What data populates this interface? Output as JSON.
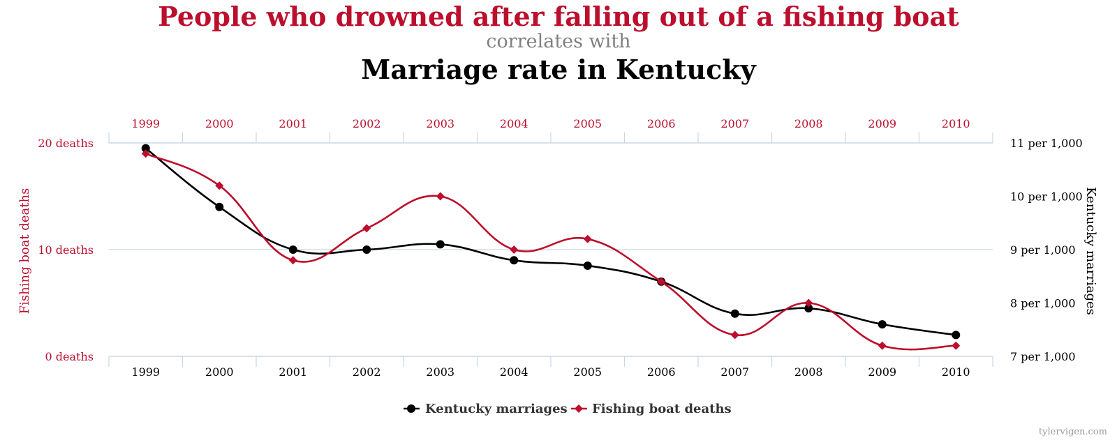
{
  "colors": {
    "red": "#bc0f2d",
    "black": "#000000",
    "gray": "#808080",
    "grid": "#c8d6e5",
    "legend_text": "#333333",
    "credit": "#999999"
  },
  "chart_data": {
    "type": "line",
    "title": "People who drowned after falling out of a fishing boat",
    "subtitle": "correlates with",
    "title2": "Marriage rate in Kentucky",
    "categories": [
      "1999",
      "2000",
      "2001",
      "2002",
      "2003",
      "2004",
      "2005",
      "2006",
      "2007",
      "2008",
      "2009",
      "2010"
    ],
    "series": [
      {
        "name": "Kentucky marriages",
        "axis": "right",
        "color": "#000000",
        "marker": "circle",
        "values": [
          10.9,
          9.8,
          9.0,
          9.0,
          9.1,
          8.8,
          8.7,
          8.4,
          7.8,
          7.9,
          7.6,
          7.4
        ]
      },
      {
        "name": "Fishing boat deaths",
        "axis": "left",
        "color": "#bc0f2d",
        "marker": "diamond",
        "values": [
          19,
          16,
          9,
          12,
          15,
          10,
          11,
          7,
          2,
          5,
          1,
          1
        ]
      }
    ],
    "left_axis": {
      "label": "Fishing boat deaths",
      "ylim": [
        0,
        20
      ],
      "ticks": [
        {
          "value": 20,
          "label": "20 deaths"
        },
        {
          "value": 10,
          "label": "10 deaths"
        },
        {
          "value": 0,
          "label": "0 deaths"
        }
      ]
    },
    "right_axis": {
      "label": "Kentucky marriages",
      "ylim": [
        7,
        11
      ],
      "ticks": [
        {
          "value": 11,
          "label": "11 per 1,000"
        },
        {
          "value": 10,
          "label": "10 per 1,000"
        },
        {
          "value": 9,
          "label": "9 per 1,000"
        },
        {
          "value": 8,
          "label": "8 per 1,000"
        },
        {
          "value": 7,
          "label": "7 per 1,000"
        }
      ]
    },
    "legend": {
      "placement": "bottom-center",
      "items": [
        "Kentucky marriages",
        "Fishing boat deaths"
      ]
    },
    "grid": true
  },
  "credit": "tylervigen.com"
}
